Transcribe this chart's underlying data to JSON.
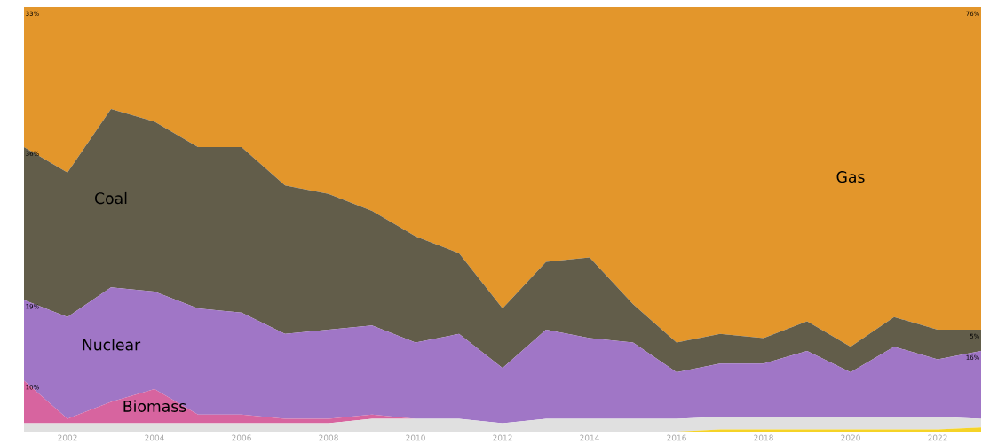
{
  "chart_data": {
    "type": "area",
    "stacked": true,
    "tick_labels": "x",
    "x": [
      2001,
      2002,
      2003,
      2004,
      2005,
      2006,
      2007,
      2008,
      2009,
      2010,
      2011,
      2012,
      2013,
      2014,
      2015,
      2016,
      2017,
      2018,
      2019,
      2020,
      2021,
      2022,
      2023
    ],
    "xlim": [
      2001,
      2023
    ],
    "xticks": [
      2002,
      2004,
      2006,
      2008,
      2010,
      2012,
      2014,
      2016,
      2018,
      2020,
      2022
    ],
    "series": [
      {
        "color": "#f5d327",
        "values": [
          0,
          0,
          0,
          0,
          0,
          0,
          0,
          0,
          0,
          0,
          0,
          0,
          0,
          0,
          0,
          0,
          0.5,
          0.5,
          0.5,
          0.5,
          0.5,
          0.5,
          1
        ]
      },
      {
        "color": "#e0e0e0",
        "values": [
          2,
          2,
          2,
          2,
          2,
          2,
          2,
          2,
          3,
          3,
          3,
          2,
          3,
          3,
          3,
          3,
          3,
          3,
          3,
          3,
          3,
          3,
          2
        ]
      },
      {
        "name": "Biomass",
        "color": "#d7649f",
        "values": [
          10,
          1,
          5,
          8,
          2,
          2,
          1,
          1,
          1,
          0,
          0,
          0,
          0,
          0,
          0,
          0,
          0,
          0,
          0,
          0,
          0,
          0,
          0
        ],
        "value_labels": [
          "10%",
          null,
          null,
          null,
          null,
          null,
          null,
          null,
          null,
          null,
          null,
          null,
          null,
          null,
          null,
          null,
          null,
          null,
          null,
          null,
          null,
          null,
          null
        ]
      },
      {
        "name": "Nuclear",
        "color": "#a076c6",
        "values": [
          19,
          24,
          27,
          23,
          25,
          24,
          20,
          21,
          21,
          18,
          20,
          13,
          21,
          19,
          18,
          11,
          12.5,
          12.5,
          15.5,
          10.5,
          16.5,
          13.5,
          16
        ],
        "value_labels": [
          "19%",
          null,
          null,
          null,
          null,
          null,
          null,
          null,
          null,
          null,
          null,
          null,
          null,
          null,
          null,
          null,
          null,
          null,
          null,
          null,
          null,
          null,
          "16%"
        ]
      },
      {
        "name": "Coal",
        "color": "#625d4a",
        "values": [
          36,
          34,
          42,
          40,
          38,
          39,
          35,
          32,
          27,
          25,
          19,
          14,
          16,
          19,
          9,
          7,
          7,
          6,
          7,
          6,
          7,
          7,
          5
        ],
        "value_labels": [
          "36%",
          null,
          null,
          null,
          null,
          null,
          null,
          null,
          null,
          null,
          null,
          null,
          null,
          null,
          null,
          null,
          null,
          null,
          null,
          null,
          null,
          null,
          "5%"
        ]
      },
      {
        "name": "Gas",
        "color": "#e3962b",
        "values": [
          33,
          39,
          24,
          27,
          33,
          33,
          42,
          44,
          48,
          54,
          58,
          71,
          60,
          59,
          70,
          79,
          77,
          78,
          74,
          80,
          73,
          76,
          76
        ],
        "value_labels": [
          "33%",
          null,
          null,
          null,
          null,
          null,
          null,
          null,
          null,
          null,
          null,
          null,
          null,
          null,
          null,
          null,
          null,
          null,
          null,
          null,
          null,
          null,
          "76%"
        ]
      }
    ]
  }
}
